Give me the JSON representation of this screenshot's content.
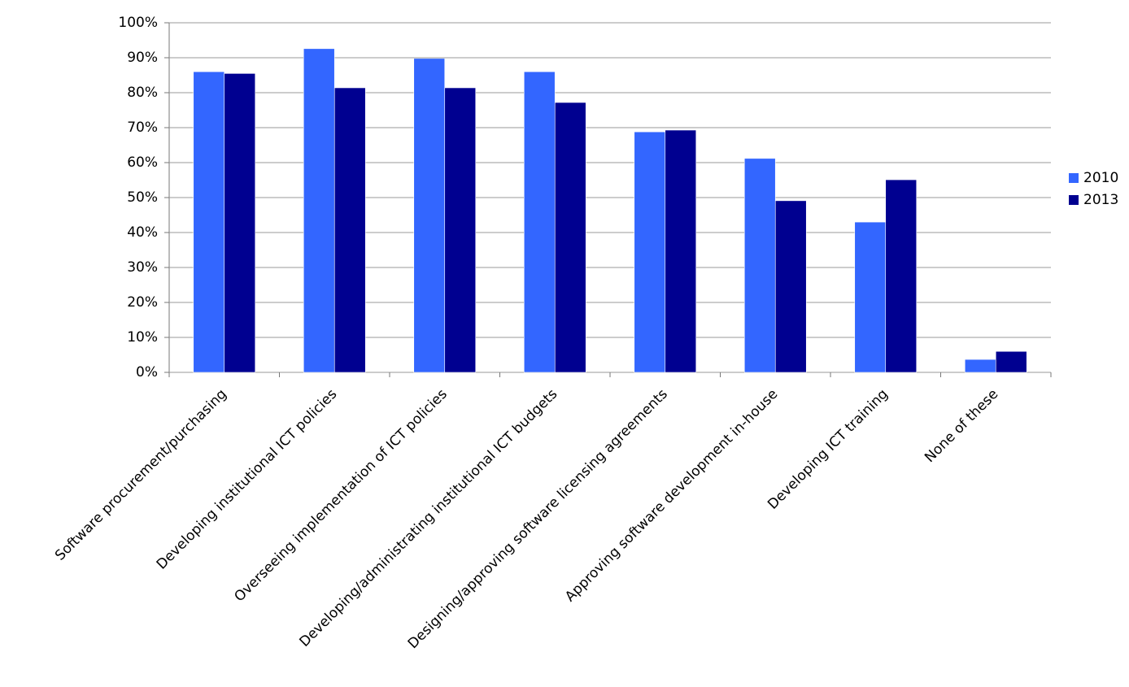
{
  "chart_data": {
    "type": "bar",
    "categories": [
      "Software procurement/purchasing",
      "Developing institutional ICT policies",
      "Overseeing implementation of ICT policies",
      "Developing/administrating institutional ICT budgets",
      "Designing/approving software licensing agreements",
      "Approving software development in-house",
      "Developing ICT training",
      "None of these"
    ],
    "series": [
      {
        "name": "2010",
        "color": "#3366ff",
        "values": [
          86,
          92.6,
          89.8,
          86,
          68.8,
          61.2,
          43,
          3.7
        ]
      },
      {
        "name": "2013",
        "color": "#000090",
        "values": [
          85.5,
          81.4,
          81.4,
          77.2,
          69.3,
          49.1,
          55.1,
          6
        ]
      }
    ],
    "ylim": [
      0,
      100
    ],
    "yticks": [
      {
        "value": 0,
        "label": "0%"
      },
      {
        "value": 10,
        "label": "10%"
      },
      {
        "value": 20,
        "label": "20%"
      },
      {
        "value": 30,
        "label": "30%"
      },
      {
        "value": 40,
        "label": "40%"
      },
      {
        "value": 50,
        "label": "50%"
      },
      {
        "value": 60,
        "label": "60%"
      },
      {
        "value": 70,
        "label": "70%"
      },
      {
        "value": 80,
        "label": "80%"
      },
      {
        "value": 90,
        "label": "90%"
      },
      {
        "value": 100,
        "label": "100%"
      }
    ],
    "grid": true,
    "legend": "right"
  }
}
